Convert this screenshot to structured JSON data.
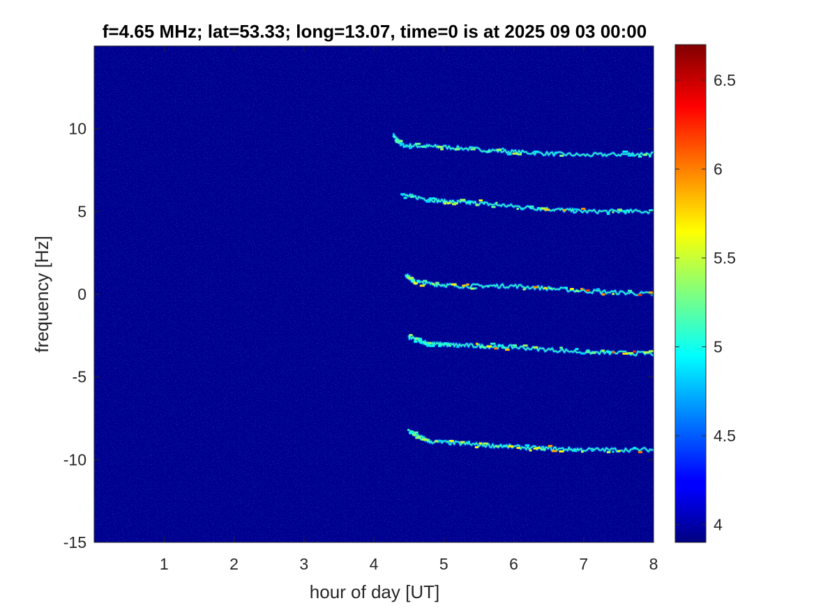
{
  "chart_data": {
    "type": "heatmap",
    "title": "f=4.65 MHz;  lat=53.33; long=13.07, time=0 is at 2025 09 03 00:00",
    "xlabel": "hour of day [UT]",
    "ylabel": "frequency [Hz]",
    "xlim": [
      0,
      8
    ],
    "ylim": [
      -15,
      15
    ],
    "xticks": [
      1,
      2,
      3,
      4,
      5,
      6,
      7,
      8
    ],
    "yticks": [
      -15,
      -10,
      -5,
      0,
      5,
      10
    ],
    "xtick_labels": [
      "1",
      "2",
      "3",
      "4",
      "5",
      "6",
      "7",
      "8"
    ],
    "ytick_labels": [
      "-15",
      "-10",
      "-5",
      "0",
      "5",
      "10"
    ],
    "colormap": "jet",
    "colorbar": {
      "range": [
        3.9,
        6.7
      ],
      "ticks": [
        4,
        4.5,
        5,
        5.5,
        6,
        6.5
      ],
      "tick_labels": [
        "4",
        "4.5",
        "5",
        "5.5",
        "6",
        "6.5"
      ]
    },
    "background_level": 3.95,
    "traces": [
      {
        "name": "trace-1",
        "points": [
          [
            4.28,
            9.6
          ],
          [
            4.4,
            9.0
          ],
          [
            5.0,
            8.9
          ],
          [
            6.0,
            8.6
          ],
          [
            7.0,
            8.4
          ],
          [
            8.0,
            8.5
          ]
        ],
        "peak": 5.6
      },
      {
        "name": "trace-2",
        "points": [
          [
            4.4,
            6.0
          ],
          [
            5.0,
            5.6
          ],
          [
            5.5,
            5.5
          ],
          [
            6.3,
            5.2
          ],
          [
            7.0,
            5.0
          ],
          [
            8.0,
            5.0
          ]
        ],
        "peak": 6.0
      },
      {
        "name": "trace-3",
        "points": [
          [
            4.45,
            1.2
          ],
          [
            4.6,
            0.7
          ],
          [
            5.2,
            0.5
          ],
          [
            6.0,
            0.5
          ],
          [
            7.0,
            0.2
          ],
          [
            8.0,
            0.0
          ]
        ],
        "peak": 6.2
      },
      {
        "name": "trace-4",
        "points": [
          [
            4.5,
            -2.6
          ],
          [
            4.8,
            -3.0
          ],
          [
            5.3,
            -3.1
          ],
          [
            6.0,
            -3.2
          ],
          [
            7.0,
            -3.5
          ],
          [
            8.0,
            -3.6
          ]
        ],
        "peak": 6.2
      },
      {
        "name": "trace-5",
        "points": [
          [
            4.5,
            -8.3
          ],
          [
            4.8,
            -8.9
          ],
          [
            5.5,
            -9.1
          ],
          [
            6.3,
            -9.3
          ],
          [
            7.0,
            -9.4
          ],
          [
            8.0,
            -9.4
          ]
        ],
        "peak": 6.0
      }
    ]
  }
}
